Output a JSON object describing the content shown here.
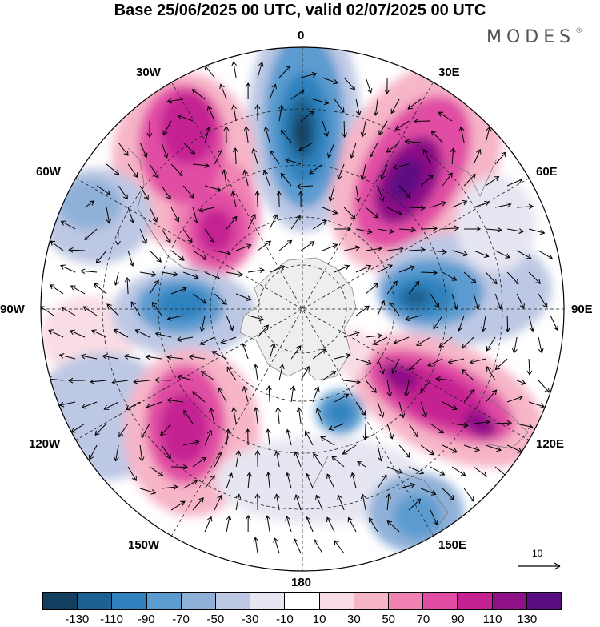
{
  "title": "Base 25/06/2025 00 UTC, valid 02/07/2025 00 UTC",
  "brand": "MODES",
  "brand_mark": "®",
  "longitude_labels": {
    "top": "0",
    "top_right": "30E",
    "right_upper": "60E",
    "right": "90E",
    "right_lower": "120E",
    "bottom_right": "150E",
    "bottom": "180",
    "bottom_left": "150W",
    "left_lower": "120W",
    "left": "90W",
    "left_upper": "60W",
    "top_left": "30W"
  },
  "vector_scale_label": "10",
  "colorbar": {
    "colors": [
      "#123f5f",
      "#1d6190",
      "#2f82bd",
      "#5b9bd0",
      "#8fb1d8",
      "#bdc8e4",
      "#e6e6f2",
      "#ffffff",
      "#f9dde4",
      "#f7b5c8",
      "#f082b4",
      "#e14da4",
      "#c42192",
      "#8e1187",
      "#5b0e82"
    ],
    "ticks": [
      "-130",
      "-110",
      "-90",
      "-70",
      "-50",
      "-30",
      "-10",
      "10",
      "30",
      "50",
      "70",
      "90",
      "110",
      "130"
    ]
  }
}
